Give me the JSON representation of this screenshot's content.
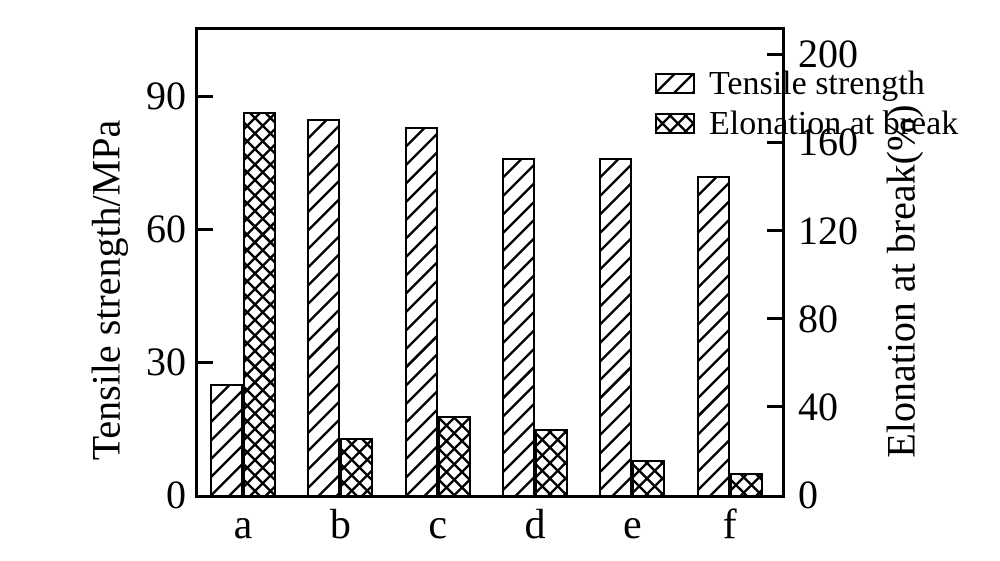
{
  "chart_data": {
    "type": "bar",
    "categories": [
      "a",
      "b",
      "c",
      "d",
      "e",
      "f"
    ],
    "series": [
      {
        "name": "Tensile strength",
        "axis": "left",
        "hatch": "diagonal",
        "values": [
          25,
          85,
          83,
          76,
          76,
          72
        ]
      },
      {
        "name": "Elonation at break",
        "axis": "right",
        "hatch": "cross",
        "values": [
          174,
          26,
          36,
          30,
          16,
          10
        ]
      }
    ],
    "left_axis": {
      "label": "Tensile strength/MPa",
      "ticks": [
        0,
        30,
        60,
        90
      ],
      "ylim": [
        0,
        105
      ]
    },
    "right_axis": {
      "label": "Elonation at break(%)",
      "ticks": [
        0,
        40,
        80,
        120,
        160,
        200
      ],
      "ylim": [
        0,
        211
      ]
    },
    "legend": {
      "position": "top-right-inside",
      "entries": [
        "Tensile strength",
        "Elonation at break"
      ]
    },
    "grid": false,
    "colors": {
      "foreground": "#000000",
      "background": "#ffffff"
    }
  }
}
